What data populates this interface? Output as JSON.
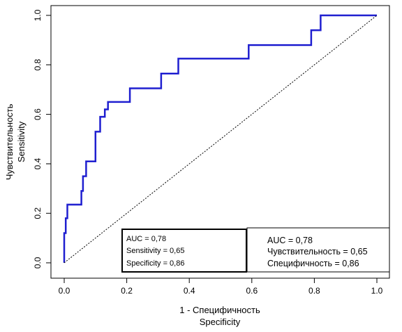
{
  "chart_data": {
    "type": "line",
    "title": "",
    "xlabel": [
      "1 - Специфичность",
      "Specificity"
    ],
    "ylabel": [
      "Чувствительность",
      "Sensitivity"
    ],
    "xlim": [
      0,
      1
    ],
    "ylim": [
      0,
      1
    ],
    "x_ticks": [
      "0.0",
      "0.2",
      "0.4",
      "0.6",
      "0.8",
      "1.0"
    ],
    "y_ticks": [
      "0.0",
      "0.2",
      "0.4",
      "0.6",
      "0.8",
      "1.0"
    ],
    "grid": false,
    "series": [
      {
        "style": "solid",
        "color": "#1f1fd0",
        "x": [
          0,
          0,
          0.005,
          0.005,
          0.01,
          0.01,
          0.055,
          0.055,
          0.06,
          0.06,
          0.07,
          0.07,
          0.1,
          0.1,
          0.115,
          0.115,
          0.13,
          0.13,
          0.14,
          0.14,
          0.21,
          0.21,
          0.31,
          0.31,
          0.365,
          0.365,
          0.59,
          0.59,
          0.79,
          0.79,
          0.82,
          0.82,
          1
        ],
        "y": [
          0,
          0.12,
          0.12,
          0.18,
          0.18,
          0.235,
          0.235,
          0.29,
          0.29,
          0.35,
          0.35,
          0.41,
          0.41,
          0.53,
          0.53,
          0.59,
          0.59,
          0.62,
          0.62,
          0.65,
          0.65,
          0.705,
          0.705,
          0.765,
          0.765,
          0.825,
          0.825,
          0.88,
          0.88,
          0.94,
          0.94,
          1.0,
          1.0
        ]
      },
      {
        "style": "dotted",
        "color": "#000000",
        "x": [
          0,
          1
        ],
        "y": [
          0,
          1
        ]
      }
    ],
    "annotations": [
      {
        "lines": [
          "AUC = 0,78",
          "Sensitivity = 0,65",
          "Specificity = 0,86"
        ]
      },
      {
        "lines": [
          "AUC = 0,78",
          "Чувствительность = 0,65",
          "Специфичность = 0,86"
        ]
      }
    ]
  }
}
